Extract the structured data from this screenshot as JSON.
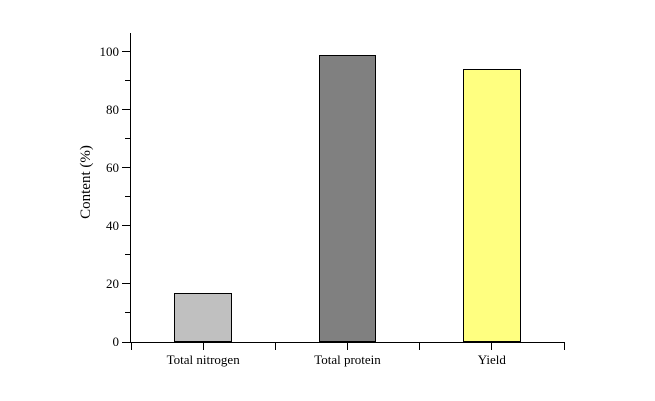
{
  "chart_data": {
    "type": "bar",
    "title": "",
    "categories": [
      "Total nitrogen",
      "Total protein",
      "Yield"
    ],
    "values": [
      17,
      99,
      94
    ],
    "xlabel": "",
    "ylabel": "Content (%)",
    "ylim": [
      0,
      106.5
    ],
    "yticks": [
      0,
      20,
      40,
      60,
      80,
      100
    ],
    "ytick_interval": 20,
    "yminor_interval": 10,
    "grid": false,
    "legend": false,
    "bar_colors": [
      "#c0c0c0",
      "#808080",
      "#ffff80"
    ],
    "bar_border_color": "#000000",
    "axis_color": "#000000",
    "background_color": "#ffffff"
  }
}
